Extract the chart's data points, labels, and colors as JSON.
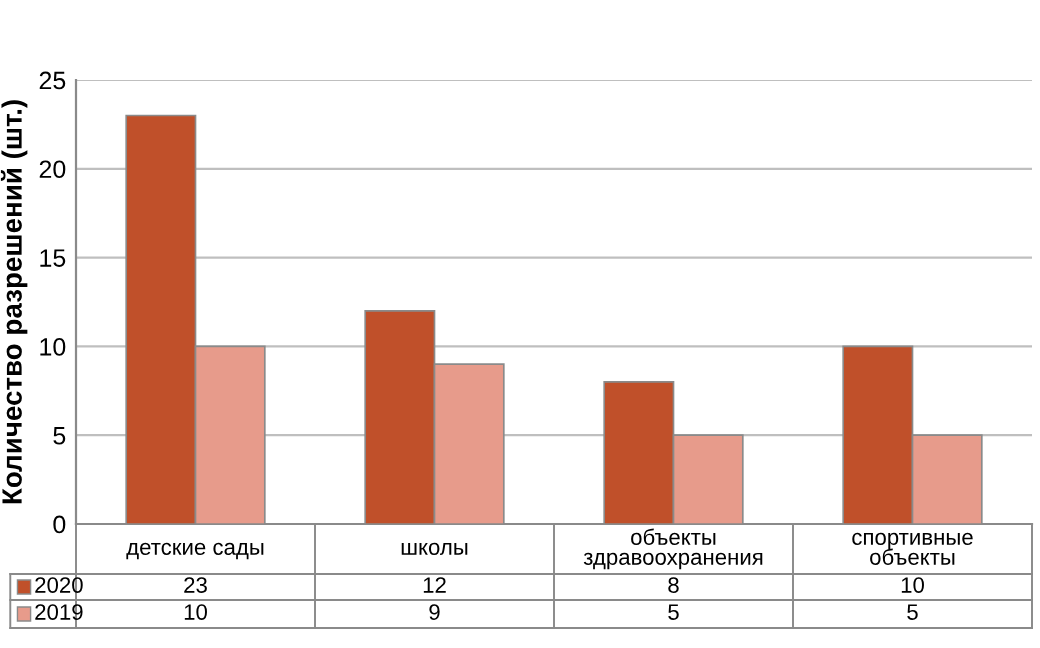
{
  "chart_data": {
    "type": "bar",
    "ylabel": "Количество разрешений (шт.)",
    "categories": [
      "детские сады",
      "школы",
      "объекты здравоохранения",
      "спортивные объекты"
    ],
    "series": [
      {
        "name": "2020",
        "color": "#c0502a",
        "values": [
          23,
          12,
          8,
          10
        ]
      },
      {
        "name": "2019",
        "color": "#e79b8b",
        "values": [
          10,
          9,
          5,
          5
        ]
      }
    ],
    "ylim": [
      0,
      25
    ],
    "yticks": [
      0,
      5,
      10,
      15,
      20,
      25
    ],
    "grid": "y",
    "legend": "bottom left",
    "data_labels": true
  }
}
